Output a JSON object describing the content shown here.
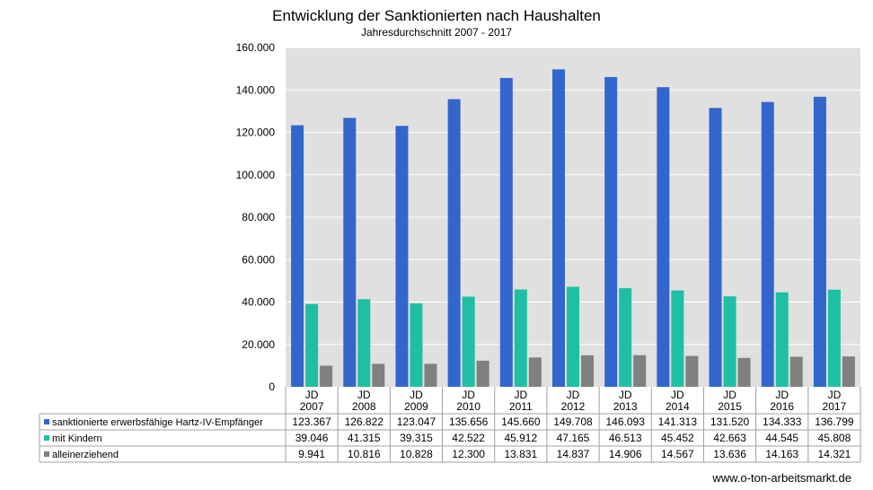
{
  "chart_data": {
    "type": "bar",
    "title": "Entwicklung der Sanktionierten nach Haushalten",
    "subtitle": "Jahresdurchschnitt  2007 - 2017",
    "categories": [
      [
        "JD",
        "2007"
      ],
      [
        "JD",
        "2008"
      ],
      [
        "JD",
        "2009"
      ],
      [
        "JD",
        "2010"
      ],
      [
        "JD",
        "2011"
      ],
      [
        "JD",
        "2012"
      ],
      [
        "JD",
        "2013"
      ],
      [
        "JD",
        "2014"
      ],
      [
        "JD",
        "2015"
      ],
      [
        "JD",
        "2016"
      ],
      [
        "JD",
        "2017"
      ]
    ],
    "ylim": [
      0,
      160000
    ],
    "yticks": [
      0,
      20000,
      40000,
      60000,
      80000,
      100000,
      120000,
      140000,
      160000
    ],
    "ytick_labels": [
      "0",
      "20.000",
      "40.000",
      "60.000",
      "80.000",
      "100.000",
      "120.000",
      "140.000",
      "160.000"
    ],
    "grid": true,
    "legend": "data-table-below",
    "series": [
      {
        "name": "sanktionierte erwerbsfähige Hartz-IV-Empfänger",
        "color": "#3366cc",
        "values": [
          123367,
          126822,
          123047,
          135656,
          145660,
          149708,
          146093,
          141313,
          131520,
          134333,
          136799
        ],
        "labels": [
          "123.367",
          "126.822",
          "123.047",
          "135.656",
          "145.660",
          "149.708",
          "146.093",
          "141.313",
          "131.520",
          "134.333",
          "136.799"
        ]
      },
      {
        "name": "mit Kindern",
        "color": "#1fbfa4",
        "values": [
          39046,
          41315,
          39315,
          42522,
          45912,
          47165,
          46513,
          45452,
          42663,
          44545,
          45808
        ],
        "labels": [
          "39.046",
          "41.315",
          "39.315",
          "42.522",
          "45.912",
          "47.165",
          "46.513",
          "45.452",
          "42.663",
          "44.545",
          "45.808"
        ]
      },
      {
        "name": "alleinerziehend",
        "color": "#808080",
        "values": [
          9941,
          10816,
          10828,
          12300,
          13831,
          14837,
          14906,
          14567,
          13636,
          14163,
          14321
        ],
        "labels": [
          "9.941",
          "10.816",
          "10.828",
          "12.300",
          "13.831",
          "14.837",
          "14.906",
          "14.567",
          "13.636",
          "14.163",
          "14.321"
        ]
      }
    ]
  },
  "footer": {
    "source": "www.o-ton-arbeitsmarkt.de"
  },
  "colors": {
    "plot_background": "#e0e0e0",
    "gridline": "#ffffff",
    "table_border": "#a0a0a0"
  }
}
